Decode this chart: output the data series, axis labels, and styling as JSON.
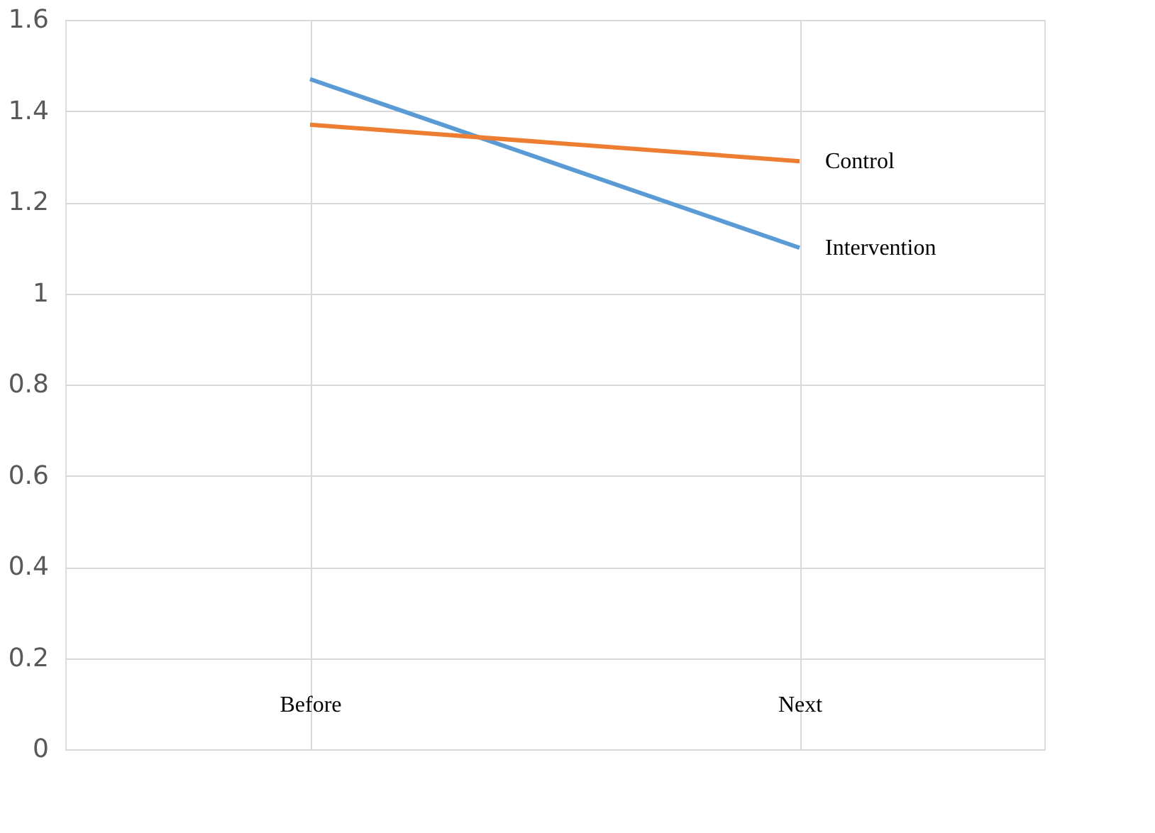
{
  "chart_data": {
    "type": "line",
    "categories": [
      "Before",
      "Next"
    ],
    "series": [
      {
        "name": "Intervention",
        "color": "#5b9bd5",
        "values": [
          1.47,
          1.1
        ]
      },
      {
        "name": "Control",
        "color": "#ed7d31",
        "values": [
          1.37,
          1.29
        ]
      }
    ],
    "ylim": [
      0,
      1.6
    ],
    "yticks": [
      0,
      0.2,
      0.4,
      0.6,
      0.8,
      1,
      1.2,
      1.4,
      1.6
    ],
    "grid": true,
    "legend": false,
    "marker": "none",
    "line_style": "solid"
  }
}
